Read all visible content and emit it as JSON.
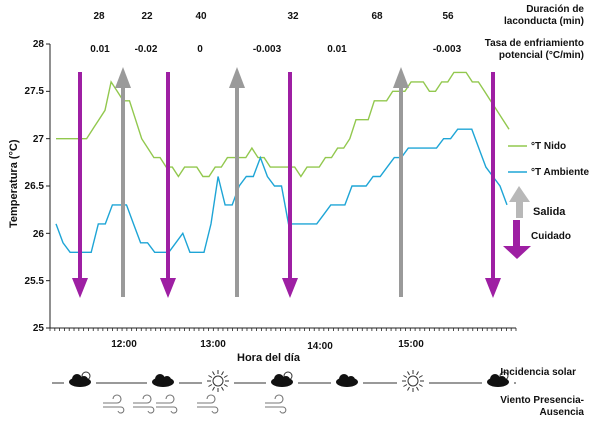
{
  "chart_data": {
    "type": "line",
    "title": "",
    "xlabel": "Hora del día",
    "ylabel": "Temperatura (°C)",
    "ylim": [
      25,
      28
    ],
    "y_ticks": [
      "28",
      "27.5",
      "27",
      "26.5",
      "26",
      "25.5",
      "25"
    ],
    "x_tick_labels": [
      "12:00",
      "13:00",
      "14:00",
      "15:00"
    ],
    "x_tick_steps": [
      16,
      33,
      53,
      74
    ],
    "n_steps": 97,
    "grid": false,
    "legend_position": "right",
    "series": [
      {
        "name": "°T Nido",
        "color": "#92c84e",
        "values": [
          27,
          27,
          27,
          27,
          27,
          27,
          27.1,
          27.2,
          27.3,
          27.6,
          27.5,
          27.4,
          27.4,
          27.2,
          27,
          26.9,
          26.8,
          26.8,
          26.7,
          26.7,
          26.6,
          26.7,
          26.7,
          26.7,
          26.6,
          26.6,
          26.7,
          26.7,
          26.8,
          26.8,
          26.8,
          26.8,
          26.9,
          26.8,
          26.8,
          26.7,
          26.7,
          26.7,
          26.7,
          26.7,
          26.6,
          26.7,
          26.7,
          26.7,
          26.8,
          26.8,
          26.9,
          26.9,
          27,
          27.2,
          27.2,
          27.2,
          27.4,
          27.4,
          27.4,
          27.5,
          27.5,
          27.5,
          27.6,
          27.6,
          27.6,
          27.5,
          27.5,
          27.6,
          27.6,
          27.7,
          27.7,
          27.7,
          27.6,
          27.6,
          27.5,
          27.4,
          27.3,
          27.2,
          27.1
        ]
      },
      {
        "name": "°T Ambiente",
        "color": "#1ea5d6",
        "values": [
          26.1,
          25.9,
          25.8,
          25.8,
          25.8,
          25.8,
          26.1,
          26.1,
          26.3,
          26.3,
          26.3,
          26.1,
          25.9,
          25.9,
          25.8,
          25.8,
          25.8,
          25.9,
          26,
          25.8,
          25.8,
          25.8,
          26.1,
          26.6,
          26.3,
          26.3,
          26.5,
          26.6,
          26.6,
          26.8,
          26.6,
          26.5,
          26.5,
          26.1,
          26.1,
          26.1,
          26.1,
          26.1,
          26.2,
          26.3,
          26.3,
          26.3,
          26.5,
          26.5,
          26.5,
          26.6,
          26.6,
          26.7,
          26.8,
          26.8,
          26.9,
          26.9,
          26.9,
          26.9,
          26.9,
          27,
          27,
          27.1,
          27.1,
          27.1,
          26.9,
          26.7,
          26.6,
          26.5,
          26.3
        ]
      }
    ],
    "top_annotations": {
      "duration_label": "Duración de laconducta (min)",
      "rate_label": "Tasa de enfriamiento potencial (°C/min)",
      "duration_values": [
        "28",
        "22",
        "40",
        "32",
        "68",
        "56"
      ],
      "rate_values": [
        "0.01",
        "-0.02",
        "0",
        "-0.003",
        "0.01",
        "-0.003"
      ]
    },
    "events": [
      {
        "type": "Cuidado",
        "at_step": 3
      },
      {
        "type": "Salida",
        "at_step": 10
      },
      {
        "type": "Cuidado",
        "at_step": 16
      },
      {
        "type": "Salida",
        "at_step": 26
      },
      {
        "type": "Cuidado",
        "at_step": 33
      },
      {
        "type": "Salida",
        "at_step": 47
      },
      {
        "type": "Cuidado",
        "at_step": 61
      }
    ],
    "event_legend": [
      {
        "label": "Salida",
        "color": "#a8a8a8"
      },
      {
        "label": "Cuidado",
        "color": "#9e1fa3"
      }
    ],
    "weather": {
      "incidence_label": "Incidencia solar",
      "wind_label": "Viento Presencia-Ausencia",
      "incidence_icons": [
        "cloud-sun-icon",
        "cloud-icon",
        "sun-icon",
        "cloud-sun-icon",
        "cloud-icon",
        "sun-icon",
        "cloud-sun-icon"
      ],
      "wind_icons": [
        "wind-icon",
        "wind-icon",
        "wind-icon",
        "wind-icon",
        "wind-icon",
        "wind-icon",
        "wind-icon"
      ]
    }
  }
}
